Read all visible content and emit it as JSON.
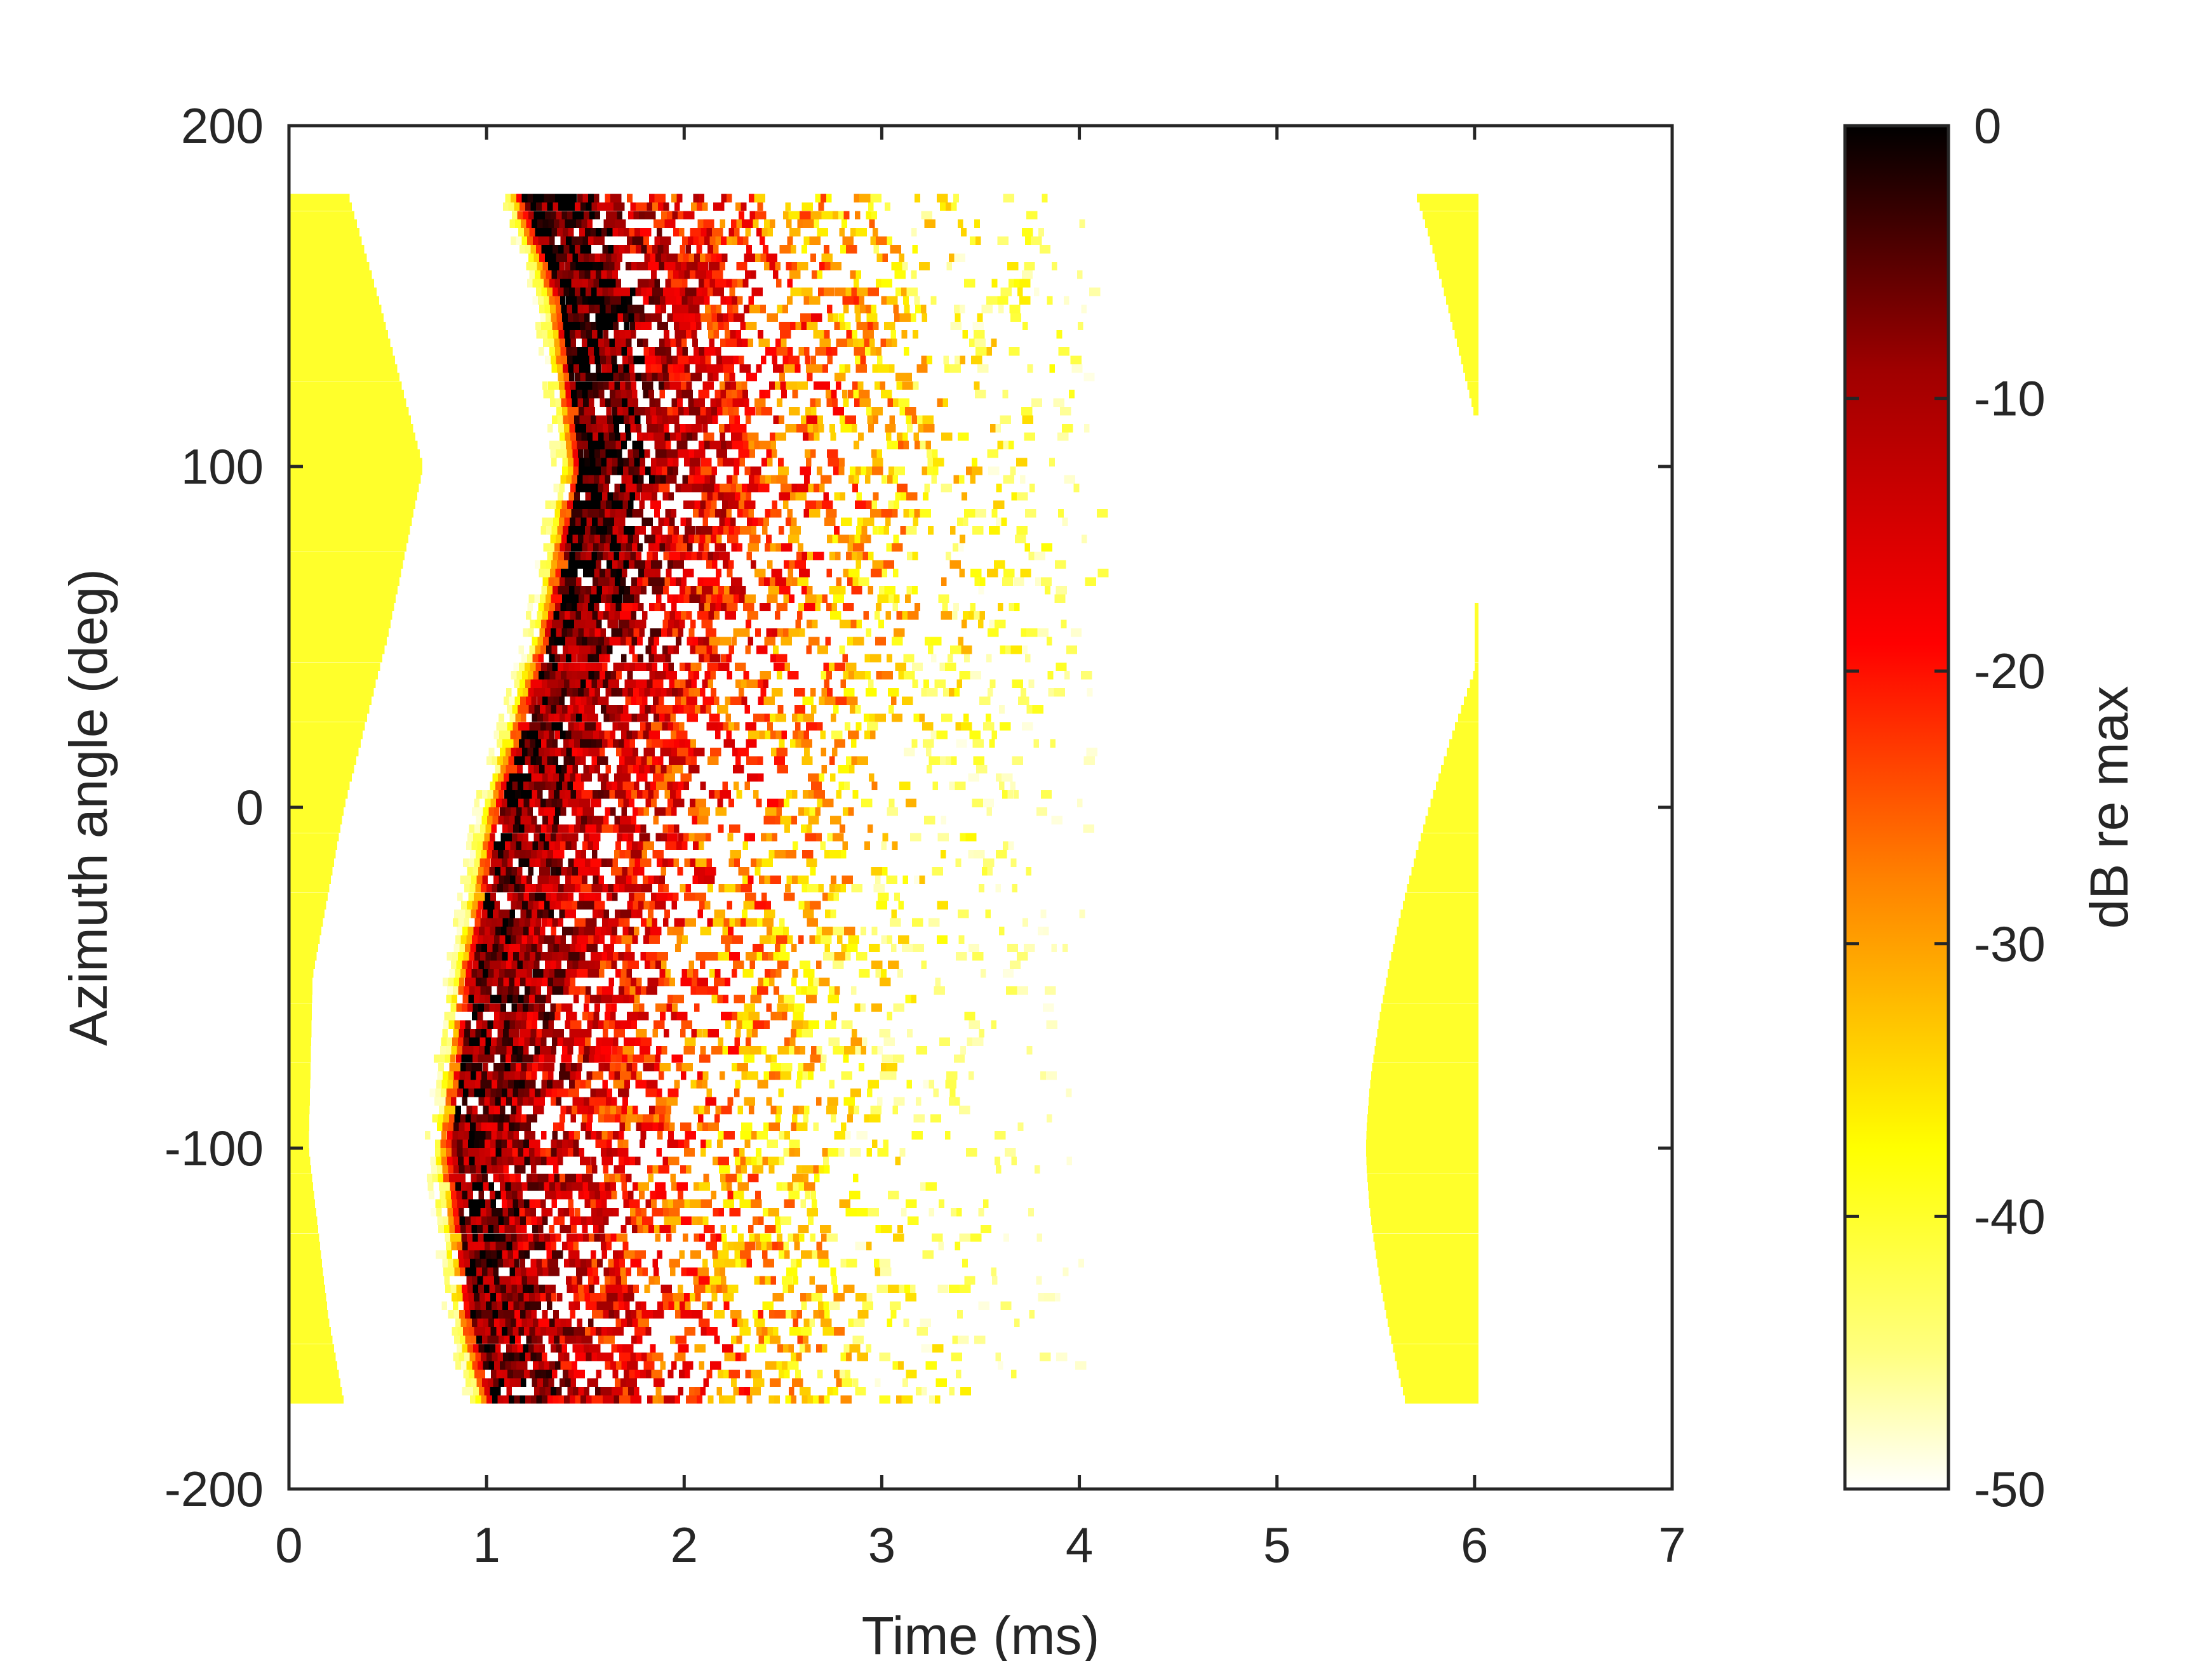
{
  "chart_data": {
    "type": "heatmap",
    "title": "",
    "xlabel": "Time (ms)",
    "ylabel": "Azimuth angle (deg)",
    "xlim": [
      0,
      7
    ],
    "ylim": [
      -200,
      200
    ],
    "xticks": [
      0,
      1,
      2,
      3,
      4,
      5,
      6,
      7
    ],
    "xtick_labels": [
      "0",
      "1",
      "2",
      "3",
      "4",
      "5",
      "6",
      "7"
    ],
    "yticks": [
      -200,
      -100,
      0,
      100,
      200
    ],
    "ytick_labels": [
      "-200",
      "-100",
      "0",
      "100",
      "200"
    ],
    "colorbar": {
      "label": "dB re max",
      "clim": [
        -50,
        0
      ],
      "ticks": [
        0,
        -10,
        -20,
        -30,
        -40,
        -50
      ],
      "tick_labels": [
        "0",
        "-10",
        "-20",
        "-30",
        "-40",
        "-50"
      ],
      "colormap": "hot (reversed)",
      "colors": [
        "#ffffff",
        "#ffff80",
        "#ffff00",
        "#ff8000",
        "#ff0000",
        "#a00000",
        "#000000"
      ]
    },
    "grid": false,
    "data_extent": {
      "time_ms": [
        0,
        6.05
      ],
      "azimuth_deg": [
        -175,
        180
      ]
    },
    "features": [
      {
        "name": "direct-path band",
        "level_db": -40,
        "azimuth_deg": [
          -175,
          180,
          -175,
          -150,
          -100,
          -50,
          0,
          50,
          100,
          150,
          180
        ],
        "time_ms_start": [
          0,
          0,
          0,
          0,
          0,
          0,
          0,
          0,
          0,
          0,
          0
        ],
        "time_ms_end": [
          0.28,
          0.28,
          0.28,
          0.2,
          0.1,
          0.12,
          0.28,
          0.5,
          0.68,
          0.45,
          0.3
        ]
      },
      {
        "name": "main arrival ridge",
        "level_db": -5,
        "points": [
          {
            "azimuth_deg": -172,
            "time_ms": 1.0
          },
          {
            "azimuth_deg": -150,
            "time_ms": 0.9
          },
          {
            "azimuth_deg": -100,
            "time_ms": 0.8
          },
          {
            "azimuth_deg": -50,
            "time_ms": 0.9
          },
          {
            "azimuth_deg": 0,
            "time_ms": 1.05
          },
          {
            "azimuth_deg": 50,
            "time_ms": 1.3
          },
          {
            "azimuth_deg": 100,
            "time_ms": 1.45
          },
          {
            "azimuth_deg": 150,
            "time_ms": 1.35
          },
          {
            "azimuth_deg": 180,
            "time_ms": 1.15
          }
        ]
      },
      {
        "name": "scattered late arrivals",
        "level_db": -40,
        "time_ms": [
          1.6,
          4.1
        ]
      },
      {
        "name": "late band",
        "level_db": -40,
        "segments": [
          {
            "azimuth_deg": [
              -175,
              60
            ],
            "time_ms_start_min": 5.45,
            "time_ms_end": 6.02
          },
          {
            "azimuth_deg": [
              115,
              180
            ],
            "time_ms_start_min": 5.7,
            "time_ms_end": 6.02
          }
        ]
      }
    ]
  }
}
